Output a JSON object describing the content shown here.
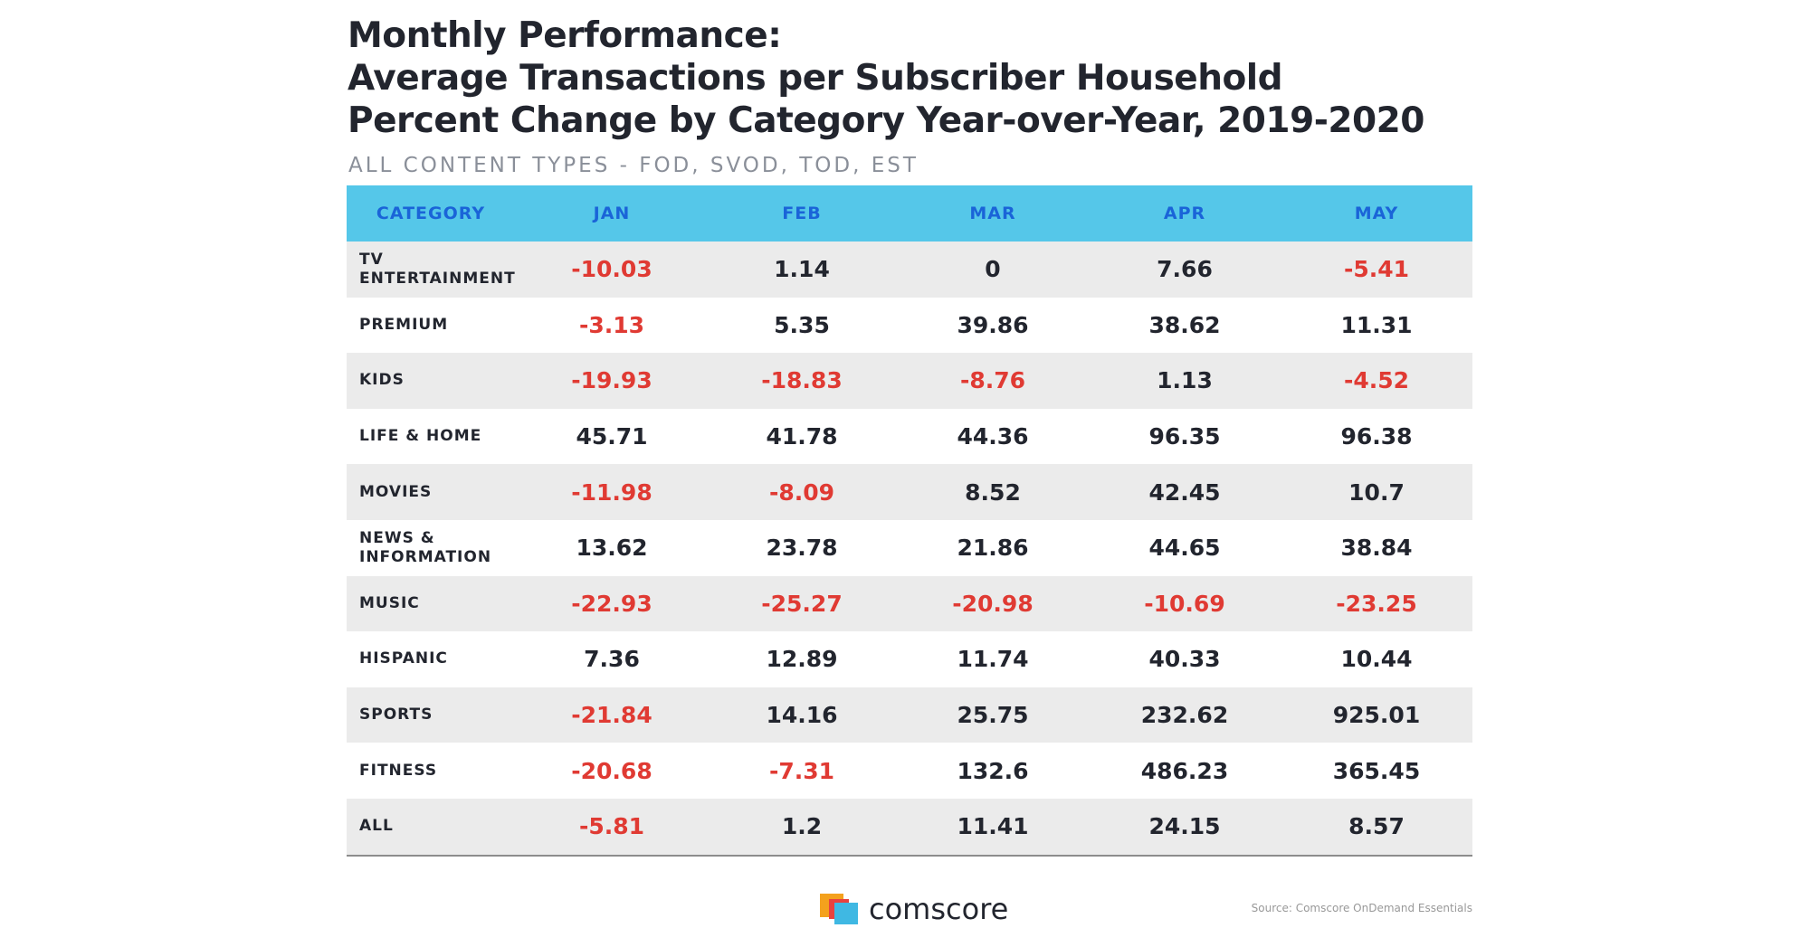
{
  "header": {
    "title": [
      "Monthly Performance:",
      "Average Transactions per Subscriber Household",
      "Percent Change by Category Year-over-Year, 2019-2020"
    ],
    "subtitle": "ALL CONTENT TYPES - FOD, SVOD, TOD, EST"
  },
  "table": {
    "columns": [
      "CATEGORY",
      "JAN",
      "FEB",
      "MAR",
      "APR",
      "MAY"
    ],
    "rows": [
      {
        "label": "TV ENTERTAINMENT",
        "values": [
          -10.03,
          1.14,
          0,
          7.66,
          -5.41
        ]
      },
      {
        "label": "PREMIUM",
        "values": [
          -3.13,
          5.35,
          39.86,
          38.62,
          11.31
        ]
      },
      {
        "label": "KIDS",
        "values": [
          -19.93,
          -18.83,
          -8.76,
          1.13,
          -4.52
        ]
      },
      {
        "label": "LIFE & HOME",
        "values": [
          45.71,
          41.78,
          44.36,
          96.35,
          96.38
        ]
      },
      {
        "label": "MOVIES",
        "values": [
          -11.98,
          -8.09,
          8.52,
          42.45,
          10.7
        ]
      },
      {
        "label": "NEWS & INFORMATION",
        "values": [
          13.62,
          23.78,
          21.86,
          44.65,
          38.84
        ]
      },
      {
        "label": "MUSIC",
        "values": [
          -22.93,
          -25.27,
          -20.98,
          -10.69,
          -23.25
        ]
      },
      {
        "label": "HISPANIC",
        "values": [
          7.36,
          12.89,
          11.74,
          40.33,
          10.44
        ]
      },
      {
        "label": "SPORTS",
        "values": [
          -21.84,
          14.16,
          25.75,
          232.62,
          925.01
        ]
      },
      {
        "label": "FITNESS",
        "values": [
          -20.68,
          -7.31,
          132.6,
          486.23,
          365.45
        ]
      },
      {
        "label": "ALL",
        "values": [
          -5.81,
          1.2,
          11.41,
          24.15,
          8.57
        ]
      }
    ]
  },
  "footer": {
    "logo": "comscore",
    "source": "Source: Comscore OnDemand Essentials"
  }
}
